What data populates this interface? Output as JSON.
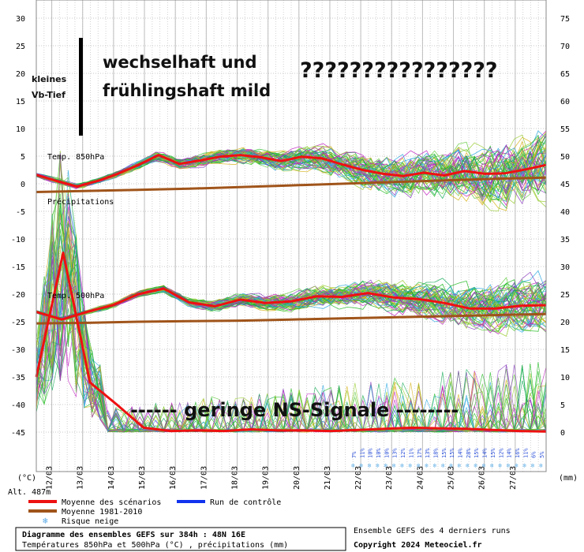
{
  "chart_data": {
    "type": "line",
    "left_axis": {
      "unit": "(°C)",
      "ticks": [
        30,
        25,
        20,
        15,
        10,
        5,
        0,
        -5,
        -10,
        -15,
        -20,
        -25,
        -30,
        -35,
        -40,
        -45
      ],
      "ylim": [
        -45,
        30
      ]
    },
    "right_axis": {
      "unit": "(mm)",
      "ticks": [
        75,
        70,
        65,
        60,
        55,
        50,
        45,
        40,
        35,
        30,
        25,
        20,
        15,
        10,
        5,
        0
      ],
      "ylim": [
        0,
        75
      ]
    },
    "x_tick_labels": [
      "12/03",
      "13/03",
      "14/03",
      "15/03",
      "16/03",
      "17/03",
      "18/03",
      "19/03",
      "20/03",
      "21/03",
      "22/03",
      "23/03",
      "24/03",
      "25/03",
      "26/03",
      "27/03"
    ],
    "altitude_label": "Alt. 487m",
    "series_labels": {
      "t850": "Temp. 850hPa",
      "precip": "Précipitations",
      "t500": "Temp. 500hPa"
    },
    "series": [
      {
        "name": "Moyenne des scénarios",
        "panel": "t850",
        "color": "#ee1111",
        "values": [
          1.6,
          0.5,
          -0.5,
          0.5,
          1.8,
          3.4,
          5.2,
          3.6,
          4.2,
          4.9,
          5.2,
          4.8,
          4.1,
          4.9,
          4.6,
          3.5,
          2.5,
          1.8,
          1.4,
          2.0,
          1.5,
          2.3,
          1.8,
          1.9,
          2.6,
          3.4
        ]
      },
      {
        "name": "Moyenne 1981-2010",
        "panel": "t850",
        "color": "#a0541a",
        "values": [
          -1.5,
          -1.3,
          -1.1,
          -0.9,
          -0.6,
          -0.3,
          0.0,
          0.3,
          0.6,
          0.9,
          1.1
        ]
      },
      {
        "name": "Moyenne des scénarios",
        "panel": "t500",
        "color": "#ee1111",
        "values": [
          -23.2,
          -24.6,
          -23.2,
          -22.0,
          -20.0,
          -19.0,
          -21.5,
          -22.2,
          -21.0,
          -21.6,
          -21.3,
          -20.4,
          -20.5,
          -19.8,
          -20.6,
          -20.9,
          -21.6,
          -22.6,
          -22.6,
          -22.1,
          -22.0
        ]
      },
      {
        "name": "Moyenne 1981-2010",
        "panel": "t500",
        "color": "#a0541a",
        "values": [
          -25.3,
          -25.2,
          -25.0,
          -24.9,
          -24.8,
          -24.6,
          -24.4,
          -24.2,
          -24.0,
          -23.8,
          -23.6
        ]
      },
      {
        "name": "Moyenne des scénarios",
        "panel": "precip",
        "color": "#ee1111",
        "values_mm": [
          10.0,
          32.5,
          9.0,
          5.0,
          0.8,
          0.2,
          0.3,
          0.2,
          0.5,
          0.3,
          0.3,
          0.2,
          0.4,
          0.6,
          0.8,
          0.7,
          0.6,
          0.4,
          0.2,
          0.1
        ]
      }
    ],
    "snow_risk_percent": [
      "7%",
      "11%",
      "10%",
      "10%",
      "10%",
      "13%",
      "12%",
      "11%",
      "17%",
      "13%",
      "18%",
      "15%",
      "15%",
      "14%",
      "28%",
      "15%",
      "14%",
      "15%",
      "12%",
      "14%",
      "16%",
      "11%",
      "6%",
      "5%"
    ],
    "grid": true
  },
  "annotations": {
    "kleines": "kleines",
    "vb_tief": "Vb-Tief",
    "line1": "wechselhaft und",
    "line2": "frühlingshaft mild",
    "questions": "????????????????",
    "ns_signal": "------ geringe NS-Signale --------"
  },
  "legend": {
    "mean": "Moyenne des scénarios",
    "control": "Run de contrôle",
    "climate": "Moyenne 1981-2010",
    "snow": "Risque neige",
    "colors": {
      "mean": "#ee1111",
      "control": "#1133ee",
      "climate": "#a0541a",
      "snow": "#6fb6e8"
    }
  },
  "footer": {
    "title": "Diagramme des ensembles GEFS sur 384h : 48N 16E",
    "subtitle": "Températures 850hPa et 500hPa (°C) , précipitations (mm)",
    "runs": "Ensemble GEFS des 4 derniers runs",
    "copyright": "Copyright 2024 Meteociel.fr"
  }
}
